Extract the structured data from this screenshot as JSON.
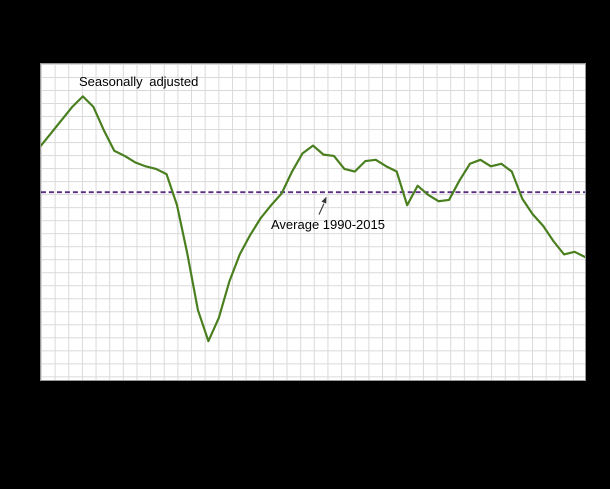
{
  "colors": {
    "background": "#000000",
    "plot_background": "#ffffff",
    "grid": "#d9d9d9",
    "plot_border": "#999999",
    "series": "#4a7f1f",
    "average": "#5b2c86",
    "annotation_text": "#000000"
  },
  "chart_data": {
    "type": "line",
    "series": [
      {
        "name": "Seasonally adjusted",
        "values": [
          3.6,
          4.6,
          5.6,
          6.6,
          7.4,
          6.6,
          4.8,
          3.2,
          2.8,
          2.3,
          2.0,
          1.8,
          1.4,
          -1.0,
          -4.8,
          -9.1,
          -11.5,
          -9.7,
          -6.9,
          -4.8,
          -3.3,
          -2.0,
          -1.0,
          -0.1,
          1.6,
          3.0,
          3.6,
          2.9,
          2.8,
          1.8,
          1.6,
          2.4,
          2.5,
          2.0,
          1.6,
          -1.0,
          0.5,
          -0.2,
          -0.7,
          -0.6,
          0.9,
          2.2,
          2.5,
          2.0,
          2.2,
          1.6,
          -0.5,
          -1.7,
          -2.6,
          -3.8,
          -4.8,
          -4.6,
          -5.0
        ]
      }
    ],
    "average_line": {
      "label": "Average 1990-2015",
      "value": 0,
      "style": "dashed"
    },
    "ylim": [
      -14.5,
      9.9
    ],
    "grid": true,
    "axis_tick_labels_visible": false,
    "legend_position": "none"
  }
}
